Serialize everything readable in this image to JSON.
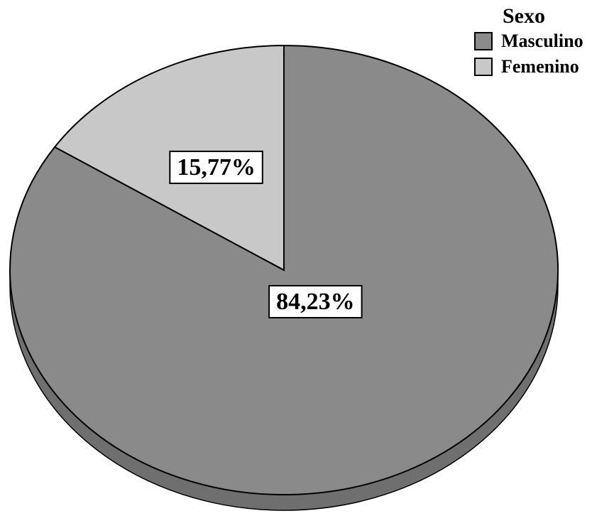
{
  "chart_data": {
    "type": "pie",
    "legend_title": "Sexo",
    "legend_position": "top-right",
    "slices": [
      {
        "label": "Masculino",
        "value": 84.23,
        "value_label": "84,23%",
        "color": "#8a8a8a"
      },
      {
        "label": "Femenino",
        "value": 15.77,
        "value_label": "15,77%",
        "color": "#c8c8c8"
      }
    ],
    "start": "12 o'clock",
    "direction": "clockwise",
    "style": "3d-tilted"
  }
}
